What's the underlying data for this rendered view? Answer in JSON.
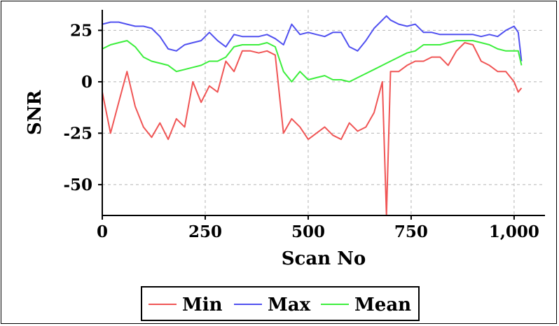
{
  "chart_data": {
    "type": "line",
    "title": "",
    "xlabel": "Scan No",
    "ylabel": "SNR",
    "xlim": [
      0,
      1075
    ],
    "ylim": [
      -65,
      35
    ],
    "xticks": [
      0,
      250,
      500,
      750,
      1000
    ],
    "xtick_labels": [
      "0",
      "250",
      "500",
      "750",
      "1,000"
    ],
    "yticks": [
      -50,
      -25,
      0,
      25
    ],
    "ytick_labels": [
      "-50",
      "-25",
      "0",
      "25"
    ],
    "grid": true,
    "legend_position": "bottom-center",
    "x": [
      0,
      20,
      40,
      60,
      80,
      100,
      120,
      140,
      160,
      180,
      200,
      220,
      240,
      260,
      280,
      300,
      320,
      340,
      360,
      380,
      400,
      420,
      440,
      460,
      480,
      500,
      520,
      540,
      560,
      580,
      600,
      620,
      640,
      660,
      680,
      690,
      700,
      720,
      740,
      760,
      780,
      800,
      820,
      840,
      860,
      880,
      900,
      920,
      940,
      960,
      980,
      1000,
      1010,
      1018
    ],
    "series": [
      {
        "name": "Min",
        "color": "#f05555",
        "values": [
          -5,
          -25,
          -10,
          5,
          -12,
          -22,
          -27,
          -20,
          -28,
          -18,
          -22,
          0,
          -10,
          -2,
          -5,
          10,
          5,
          15,
          15,
          14,
          15,
          13,
          -25,
          -18,
          -22,
          -28,
          -25,
          -22,
          -26,
          -28,
          -20,
          -24,
          -22,
          -15,
          0,
          -65,
          5,
          5,
          8,
          10,
          10,
          12,
          12,
          8,
          15,
          19,
          18,
          10,
          8,
          5,
          5,
          0,
          -5,
          -3
        ]
      },
      {
        "name": "Max",
        "color": "#5050f0",
        "values": [
          28,
          29,
          29,
          28,
          27,
          27,
          26,
          22,
          16,
          15,
          18,
          19,
          20,
          24,
          20,
          17,
          23,
          22,
          22,
          22,
          23,
          21,
          18,
          28,
          23,
          24,
          23,
          22,
          24,
          24,
          17,
          15,
          20,
          26,
          30,
          32,
          30,
          28,
          27,
          28,
          24,
          24,
          23,
          23,
          23,
          23,
          23,
          22,
          23,
          22,
          25,
          27,
          24,
          10
        ]
      },
      {
        "name": "Mean",
        "color": "#3cee3c",
        "values": [
          16,
          18,
          19,
          20,
          17,
          12,
          10,
          9,
          8,
          5,
          6,
          7,
          8,
          10,
          10,
          12,
          17,
          18,
          18,
          18,
          19,
          17,
          5,
          0,
          5,
          1,
          2,
          3,
          1,
          1,
          0,
          2,
          4,
          6,
          8,
          9,
          10,
          12,
          14,
          15,
          18,
          18,
          18,
          19,
          20,
          20,
          20,
          19,
          18,
          16,
          15,
          15,
          15,
          8
        ]
      }
    ]
  }
}
